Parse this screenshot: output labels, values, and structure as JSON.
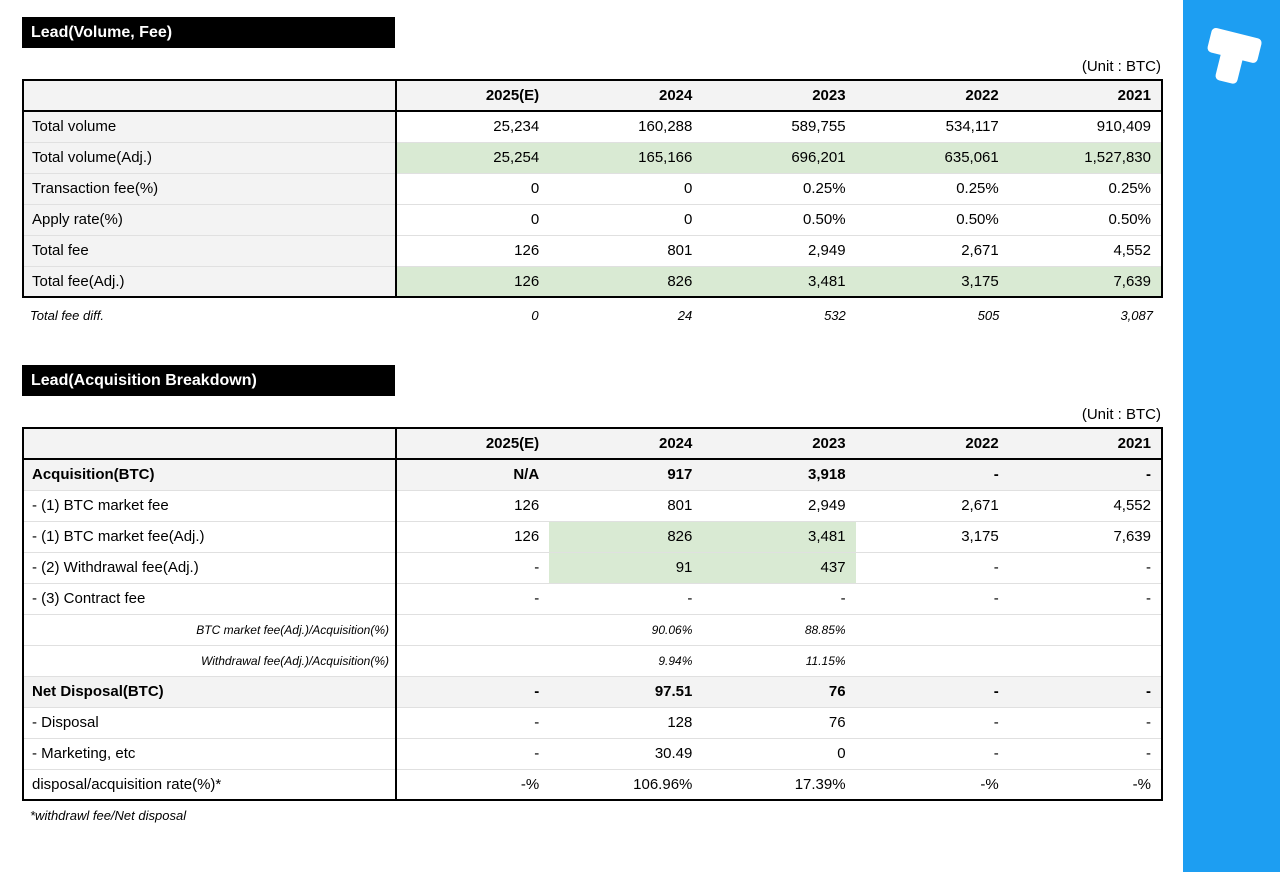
{
  "colors": {
    "sidebar_blue": "#1d9ef2",
    "highlight_green": "#d9ead3",
    "header_gray": "#f3f3f3",
    "title_bar_black": "#000000"
  },
  "sidebar": {
    "logo": "tokenpost-t-logo"
  },
  "table1": {
    "title": "Lead(Volume, Fee)",
    "unit": "(Unit : BTC)",
    "columns": [
      "",
      "2025(E)",
      "2024",
      "2023",
      "2022",
      "2021"
    ],
    "rows": [
      {
        "label": "Total volume",
        "bold": "label",
        "values": [
          "25,234",
          "160,288",
          "589,755",
          "534,117",
          "910,409"
        ]
      },
      {
        "label": "Total volume(Adj.)",
        "bold": "label",
        "bg": "green",
        "values": [
          "25,254",
          "165,166",
          "696,201",
          "635,061",
          "1,527,830"
        ]
      },
      {
        "label": "Transaction fee(%)",
        "values": [
          "0",
          "0",
          "0.25%",
          "0.25%",
          "0.25%"
        ]
      },
      {
        "label": "Apply rate(%)",
        "values": [
          "0",
          "0",
          "0.50%",
          "0.50%",
          "0.50%"
        ]
      },
      {
        "label": "Total fee",
        "bold": "label",
        "values": [
          "126",
          "801",
          "2,949",
          "2,671",
          "4,552"
        ]
      },
      {
        "label": "Total fee(Adj.)",
        "bold": "label",
        "bg": "green",
        "values": [
          "126",
          "826",
          "3,481",
          "3,175",
          "7,639"
        ]
      }
    ],
    "diffTable": {
      "rows": [
        {
          "label": "Total fee diff.",
          "style": "diff",
          "values": [
            "0",
            "24",
            "532",
            "505",
            "3,087"
          ]
        }
      ]
    }
  },
  "table2": {
    "title": "Lead(Acquisition Breakdown)",
    "unit": "(Unit : BTC)",
    "columns": [
      "",
      "2025(E)",
      "2024",
      "2023",
      "2022",
      "2021"
    ],
    "rows": [
      {
        "label": "Acquisition(BTC)",
        "bold": "all",
        "bg": "gray",
        "values": [
          "N/A",
          "917",
          "3,918",
          "-",
          "-"
        ]
      },
      {
        "label": "- (1) BTC market fee",
        "values": [
          "126",
          "801",
          "2,949",
          "2,671",
          "4,552"
        ]
      },
      {
        "label": "- (1) BTC market fee(Adj.)",
        "greenCells": [
          1,
          2
        ],
        "values": [
          "126",
          "826",
          "3,481",
          "3,175",
          "7,639"
        ]
      },
      {
        "label": "- (2) Withdrawal fee(Adj.)",
        "greenCells": [
          1,
          2
        ],
        "values": [
          "-",
          "91",
          "437",
          "-",
          "-"
        ]
      },
      {
        "label": "- (3) Contract fee",
        "values": [
          "-",
          "-",
          "-",
          "-",
          "-"
        ]
      },
      {
        "label": "BTC market fee(Adj.)/Acquisition(%)",
        "style": "ratio",
        "values": [
          "",
          "90.06%",
          "88.85%",
          "",
          ""
        ]
      },
      {
        "label": "Withdrawal fee(Adj.)/Acquisition(%)",
        "style": "ratio",
        "values": [
          "",
          "9.94%",
          "11.15%",
          "",
          ""
        ]
      },
      {
        "label": "Net Disposal(BTC)",
        "bold": "all",
        "bg": "gray",
        "values": [
          "-",
          "97.51",
          "76",
          "-",
          "-"
        ]
      },
      {
        "label": "- Disposal",
        "values": [
          "-",
          "128",
          "76",
          "-",
          "-"
        ]
      },
      {
        "label": "- Marketing, etc",
        "values": [
          "-",
          "30.49",
          "0",
          "-",
          "-"
        ]
      },
      {
        "label": "disposal/acquisition rate(%)*",
        "values": [
          "-%",
          "106.96%",
          "17.39%",
          "-%",
          "-%"
        ]
      }
    ],
    "footnote": "*withdrawl fee/Net disposal"
  }
}
